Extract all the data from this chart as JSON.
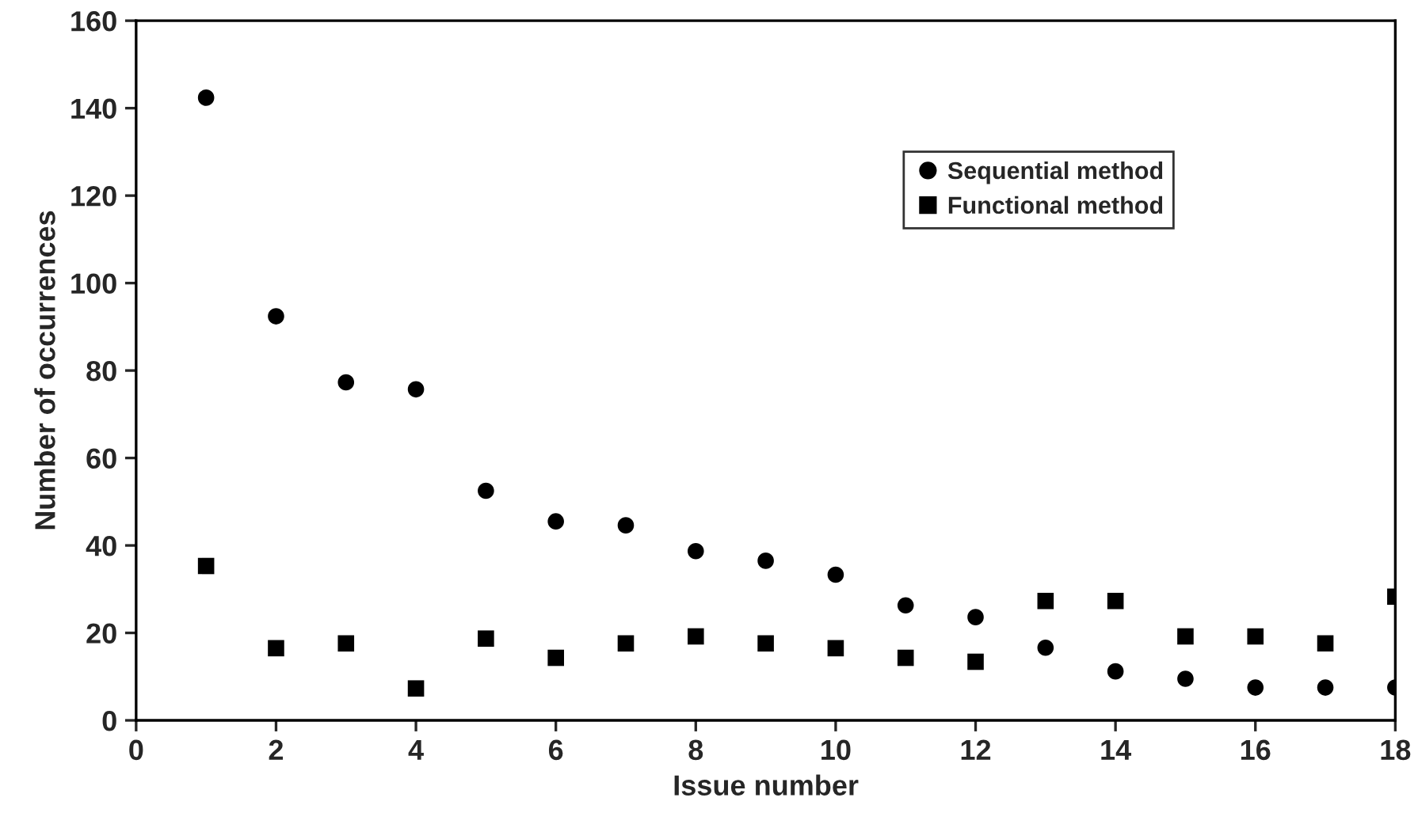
{
  "chart_data": {
    "type": "scatter",
    "xlabel": "Issue number",
    "ylabel": "Number of occurrences",
    "x": [
      1,
      2,
      3,
      4,
      5,
      6,
      7,
      8,
      9,
      10,
      11,
      12,
      13,
      14,
      15,
      16,
      17,
      18
    ],
    "series": [
      {
        "name": "Sequential method",
        "color": "#000000",
        "marker": "circle",
        "values": [
          142.4,
          92.4,
          77.3,
          75.7,
          52.5,
          45.5,
          44.6,
          38.7,
          36.5,
          33.3,
          26.3,
          23.6,
          16.6,
          11.2,
          9.5,
          7.5,
          7.5,
          7.5
        ]
      },
      {
        "name": "Functional method",
        "color": "#000000",
        "marker": "square",
        "values": [
          35.3,
          16.5,
          17.6,
          7.3,
          18.7,
          14.3,
          17.6,
          19.2,
          17.6,
          16.5,
          14.3,
          13.4,
          27.3,
          27.3,
          19.2,
          19.2,
          17.6,
          28.3
        ]
      }
    ],
    "xlim": [
      0,
      18
    ],
    "xticks": [
      0,
      2,
      4,
      6,
      8,
      10,
      12,
      14,
      16,
      18
    ],
    "ylim": [
      0,
      160
    ],
    "yticks": [
      0,
      20,
      40,
      60,
      80,
      100,
      120,
      140,
      160
    ],
    "grid": false,
    "legend": "top right"
  }
}
